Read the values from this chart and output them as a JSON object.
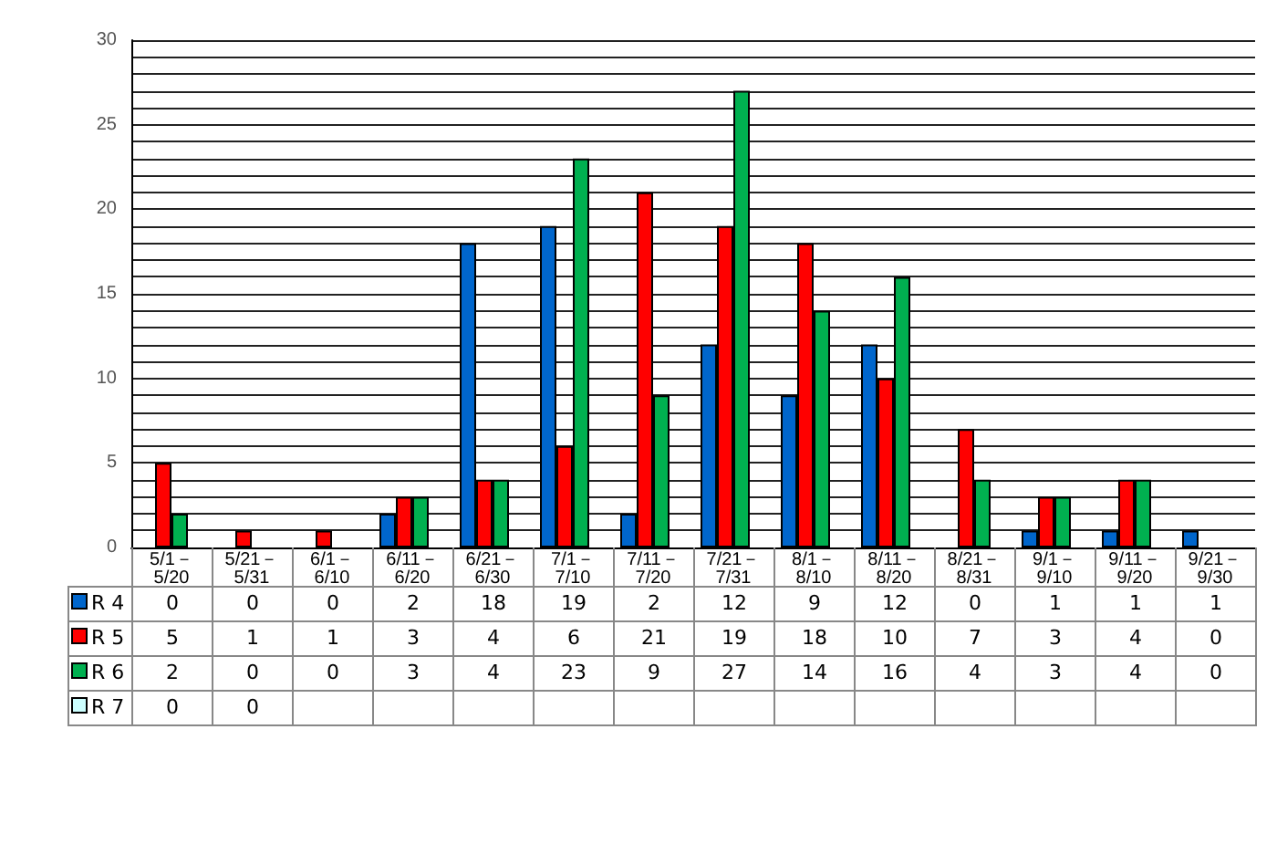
{
  "chart_data": {
    "type": "bar",
    "categories": [
      "5/1－\n5/20",
      "5/21－\n5/31",
      "6/1－\n6/10",
      "6/11－\n6/20",
      "6/21－\n6/30",
      "7/1－\n7/10",
      "7/11－\n7/20",
      "7/21－\n7/31",
      "8/1－\n8/10",
      "8/11－\n8/20",
      "8/21－\n8/31",
      "9/1－\n9/10",
      "9/11－\n9/20",
      "9/21－\n9/30"
    ],
    "series": [
      {
        "name": "R 4",
        "color": "#0066cc",
        "values": [
          0,
          0,
          0,
          2,
          18,
          19,
          2,
          12,
          9,
          12,
          0,
          1,
          1,
          1
        ]
      },
      {
        "name": "R 5",
        "color": "#ff0000",
        "values": [
          5,
          1,
          1,
          3,
          4,
          6,
          21,
          19,
          18,
          10,
          7,
          3,
          4,
          0
        ]
      },
      {
        "name": "R 6",
        "color": "#00b050",
        "values": [
          2,
          0,
          0,
          3,
          4,
          23,
          9,
          27,
          14,
          16,
          4,
          3,
          4,
          0
        ]
      },
      {
        "name": "R 7",
        "color": "#ccffff",
        "values": [
          0,
          0,
          null,
          null,
          null,
          null,
          null,
          null,
          null,
          null,
          null,
          null,
          null,
          null
        ]
      }
    ],
    "ylim": [
      0,
      30
    ],
    "yticks": [
      0,
      {
        "value": 1,
        "label": null
      },
      {
        "value": 2,
        "label": null
      },
      {
        "value": 3,
        "label": null
      },
      {
        "value": 4,
        "label": null
      },
      5,
      {
        "value": 6,
        "label": null
      },
      {
        "value": 7,
        "label": null
      },
      {
        "value": 8,
        "label": null
      },
      {
        "value": 9,
        "label": null
      },
      10,
      {
        "value": 11,
        "label": null
      },
      {
        "value": 12,
        "label": null
      },
      {
        "value": 13,
        "label": null
      },
      {
        "value": 14,
        "label": null
      },
      15,
      {
        "value": 16,
        "label": null
      },
      {
        "value": 17,
        "label": null
      },
      {
        "value": 18,
        "label": null
      },
      {
        "value": 19,
        "label": null
      },
      20,
      {
        "value": 21,
        "label": null
      },
      {
        "value": 22,
        "label": null
      },
      {
        "value": 23,
        "label": null
      },
      {
        "value": 24,
        "label": null
      },
      25,
      {
        "value": 26,
        "label": null
      },
      {
        "value": 27,
        "label": null
      },
      {
        "value": 28,
        "label": null
      },
      {
        "value": 29,
        "label": null
      },
      30
    ],
    "grid": "y",
    "legend": "bottom left",
    "data_labels": true
  }
}
